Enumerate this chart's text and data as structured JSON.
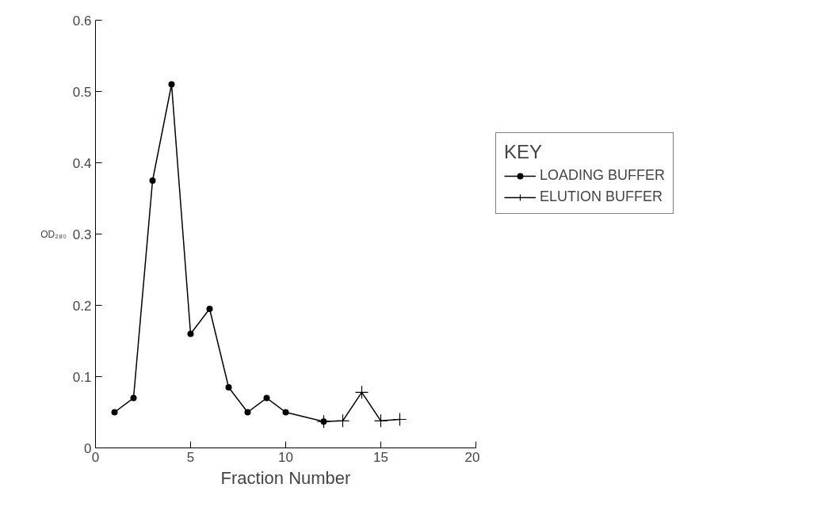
{
  "chart_data": {
    "type": "line",
    "xlabel": "Fraction Number",
    "ylabel": "OD₂₈₀",
    "legend_title": "KEY",
    "xlim": [
      0,
      20
    ],
    "xticks": [
      0,
      5,
      10,
      15,
      20
    ],
    "ylim": [
      0,
      0.6
    ],
    "yticks": [
      0,
      0.1,
      0.2,
      0.3,
      0.4,
      0.5,
      0.6
    ],
    "grid": false,
    "legend": "right",
    "series": [
      {
        "name": "LOADING BUFFER",
        "color": "#000000",
        "marker": "circle",
        "x": [
          1,
          2,
          3,
          4,
          5,
          6,
          7,
          8,
          9,
          10,
          12
        ],
        "values": [
          0.05,
          0.07,
          0.375,
          0.51,
          0.16,
          0.195,
          0.085,
          0.05,
          0.07,
          0.05,
          0.037
        ]
      },
      {
        "name": "ELUTION BUFFER",
        "color": "#000000",
        "marker": "cross",
        "x": [
          12,
          13,
          14,
          15,
          16
        ],
        "values": [
          0.037,
          0.038,
          0.078,
          0.038,
          0.04
        ]
      }
    ]
  }
}
